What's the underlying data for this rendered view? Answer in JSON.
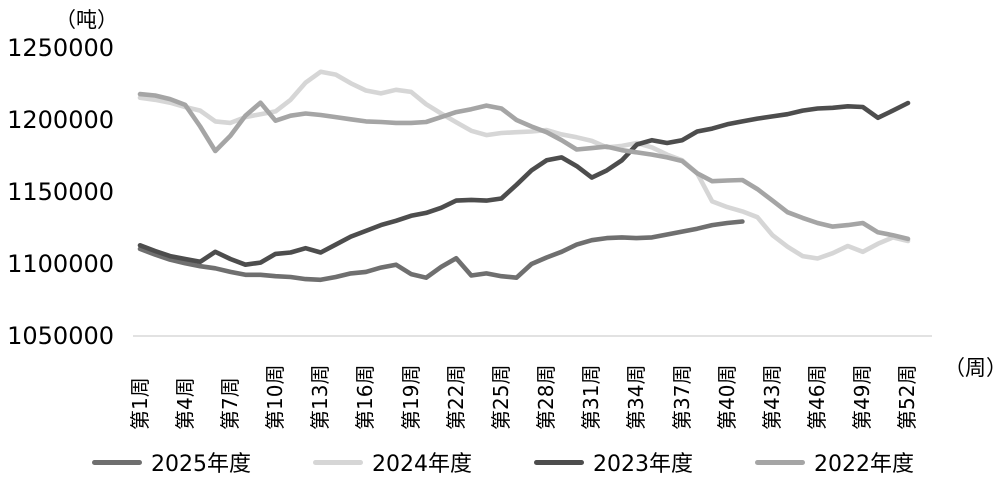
{
  "chart_data": {
    "type": "line",
    "title": "",
    "unit_y_label": "（吨）",
    "unit_x_label": "（周）",
    "ylabel": "吨",
    "xlabel": "周",
    "ylim": [
      1050000,
      1250000
    ],
    "y_ticks": [
      1250000,
      1200000,
      1150000,
      1100000,
      1050000
    ],
    "x_range_weeks": [
      1,
      52
    ],
    "x_tick_weeks": [
      1,
      4,
      7,
      10,
      13,
      16,
      19,
      22,
      25,
      28,
      31,
      34,
      37,
      40,
      43,
      46,
      49,
      52
    ],
    "x_tick_labels": [
      "第1周",
      "第4周",
      "第7周",
      "第10周",
      "第13周",
      "第16周",
      "第19周",
      "第22周",
      "第25周",
      "第28周",
      "第31周",
      "第34周",
      "第37周",
      "第40周",
      "第43周",
      "第46周",
      "第49周",
      "第52周"
    ],
    "grid": "off",
    "legend_position": "bottom",
    "axis_line_color": "#d9d9d9",
    "legend": [
      "2025年度",
      "2024年度",
      "2023年度",
      "2022年度"
    ],
    "series": [
      {
        "name": "2025年度",
        "color": "#6f6f6f",
        "start_week": 1,
        "values": [
          1110500,
          1106500,
          1103000,
          1100500,
          1098500,
          1097000,
          1094500,
          1092500,
          1092500,
          1091500,
          1091000,
          1089500,
          1089000,
          1091000,
          1093500,
          1094500,
          1097500,
          1099500,
          1093000,
          1090500,
          1098000,
          1104000,
          1092000,
          1093500,
          1091500,
          1090500,
          1100000,
          1104500,
          1108500,
          1113500,
          1116500,
          1118000,
          1118500,
          1118000,
          1118500,
          1120500,
          1122500,
          1124500,
          1127000,
          1128500,
          1129500
        ]
      },
      {
        "name": "2024年度",
        "color": "#d6d6d6",
        "start_week": 1,
        "values": [
          1215500,
          1214000,
          1212000,
          1209000,
          1206500,
          1199000,
          1198000,
          1202000,
          1204000,
          1206000,
          1214000,
          1226000,
          1233500,
          1231500,
          1225500,
          1220500,
          1218500,
          1221000,
          1219500,
          1211000,
          1204500,
          1198500,
          1192500,
          1189500,
          1191000,
          1191500,
          1192000,
          1193000,
          1190000,
          1188000,
          1185500,
          1181000,
          1182000,
          1184000,
          1181000,
          1176000,
          1172000,
          1163000,
          1143500,
          1139500,
          1136500,
          1132500,
          1120000,
          1112000,
          1105500,
          1103800,
          1107500,
          1112500,
          1108500,
          1114000,
          1118500,
          1116000
        ]
      },
      {
        "name": "2023年度",
        "color": "#4d4d4d",
        "start_week": 1,
        "values": [
          1113000,
          1109000,
          1105500,
          1103500,
          1101500,
          1108500,
          1103500,
          1099500,
          1101000,
          1107000,
          1108000,
          1111000,
          1108000,
          1113500,
          1119000,
          1123000,
          1127000,
          1130000,
          1133500,
          1135500,
          1139000,
          1144000,
          1144500,
          1144000,
          1145500,
          1155000,
          1165000,
          1172000,
          1174000,
          1168000,
          1160000,
          1165000,
          1172000,
          1183000,
          1186000,
          1184000,
          1186000,
          1192000,
          1194000,
          1197000,
          1199000,
          1201000,
          1202500,
          1204000,
          1206500,
          1208000,
          1208500,
          1209500,
          1209000,
          1201500,
          1206500,
          1211800
        ]
      },
      {
        "name": "2022年度",
        "color": "#a5a5a5",
        "start_week": 1,
        "values": [
          1218000,
          1217000,
          1214500,
          1210500,
          1195500,
          1178500,
          1189000,
          1203000,
          1212000,
          1199500,
          1203000,
          1204500,
          1203500,
          1202000,
          1200500,
          1199000,
          1198600,
          1198000,
          1198000,
          1198600,
          1202000,
          1205500,
          1207500,
          1210000,
          1208000,
          1200000,
          1195500,
          1191500,
          1186000,
          1179500,
          1180500,
          1181500,
          1179000,
          1177500,
          1176000,
          1174000,
          1171500,
          1163000,
          1157500,
          1158000,
          1158300,
          1152000,
          1144000,
          1136000,
          1132000,
          1128500,
          1126000,
          1127000,
          1128500,
          1122000,
          1120000,
          1117400
        ]
      }
    ]
  }
}
